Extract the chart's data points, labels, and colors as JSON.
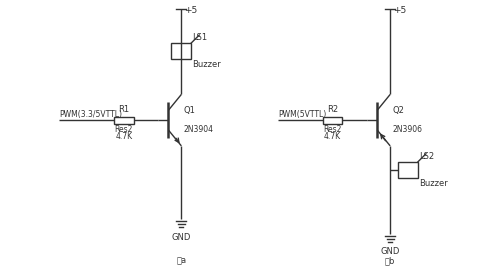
{
  "bg_color": "#ffffff",
  "line_color": "#333333",
  "text_color": "#333333",
  "circuit_a": {
    "vcc_label": "+5",
    "gnd_label": "GND",
    "pwm_label": "PWM(3.3/5VTTL)",
    "r_label": "R1",
    "r_type": "Res2",
    "r_val": "4.7K",
    "q_label": "Q1",
    "q_type": "2N3904",
    "ls_label": "LS1",
    "ls_type": "Buzzer",
    "fig_label": "图a"
  },
  "circuit_b": {
    "vcc_label": "+5",
    "gnd_label": "GND",
    "pwm_label": "PWM(5VTTL)",
    "r_label": "R2",
    "r_type": "Res2",
    "r_val": "4.7K",
    "q_label": "Q2",
    "q_type": "2N3906",
    "ls_label": "LS2",
    "ls_type": "Buzzer",
    "fig_label": "图b"
  },
  "transistor_bar_lw": 1.8,
  "line_lw": 1.0,
  "fs_label": 6.5,
  "fs_text": 6.0,
  "fs_small": 5.5
}
